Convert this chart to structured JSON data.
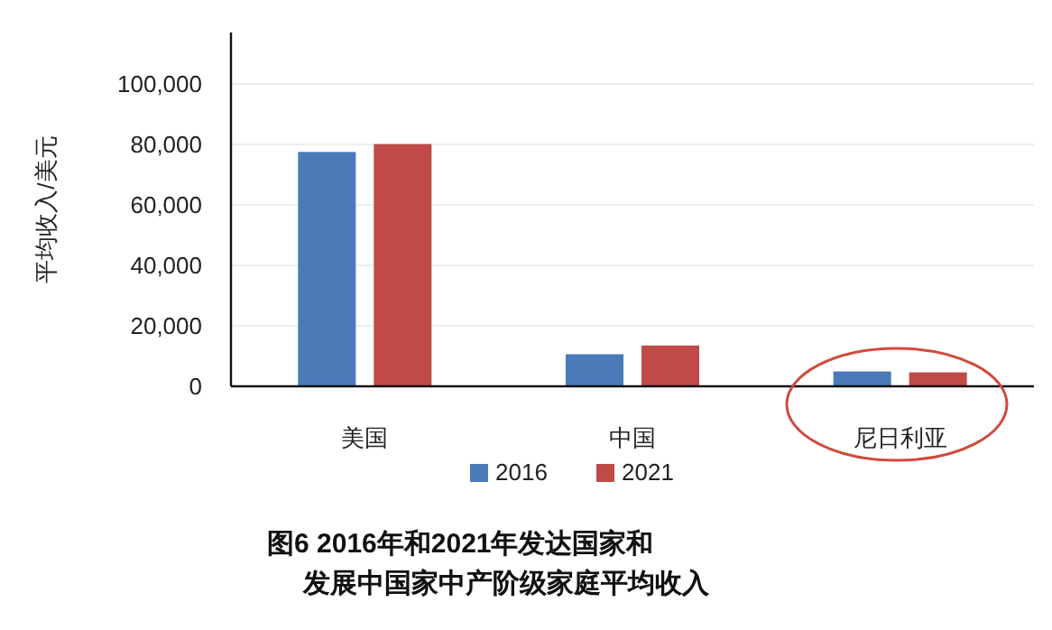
{
  "chart_data": {
    "type": "bar",
    "title": "图6 2016年和2021年发达国家和发展中国家中产阶级家庭平均收入",
    "ylabel": "平均收入/美元",
    "categories": [
      "美国",
      "中国",
      "尼日利亚"
    ],
    "series": [
      {
        "name": "2016",
        "color": "#4a7ab8",
        "values": [
          77500,
          10600,
          4900
        ]
      },
      {
        "name": "2021",
        "color": "#bf4a48",
        "values": [
          80100,
          13500,
          4600
        ]
      }
    ],
    "ylim": [
      0,
      117000
    ],
    "yticks": [
      {
        "value": 0,
        "label": "0"
      },
      {
        "value": 20000,
        "label": "20,000"
      },
      {
        "value": 40000,
        "label": "40,000"
      },
      {
        "value": 60000,
        "label": "60,000"
      },
      {
        "value": 80000,
        "label": "80,000"
      },
      {
        "value": 100000,
        "label": "100,000"
      }
    ],
    "grid": "y",
    "legend": "bottom"
  }
}
